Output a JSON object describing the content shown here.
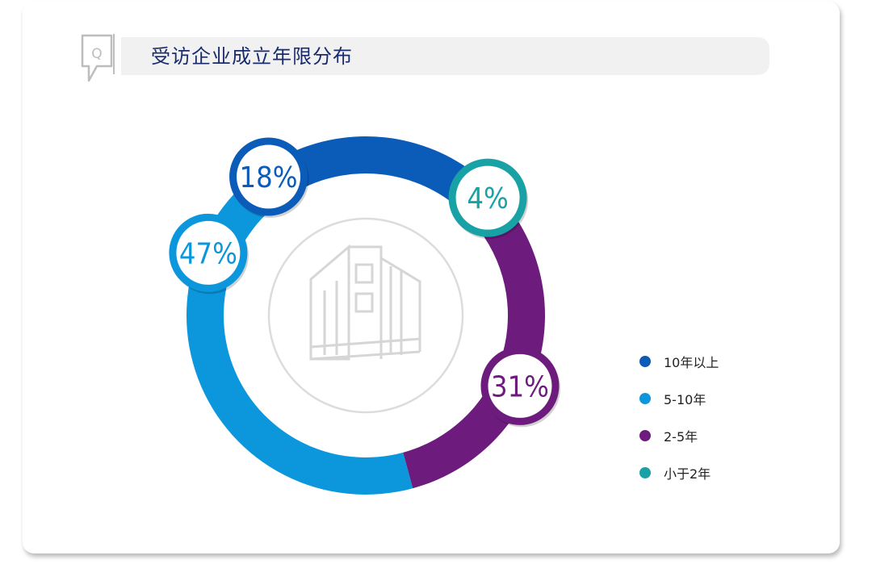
{
  "header": {
    "title": "受访企业成立年限分布",
    "icon": "q-speech-icon"
  },
  "colors": {
    "title": "#1a2b6d",
    "title_bar": "#f1f1f2",
    "inner_circle_border": "#dcdcdc",
    "building_icon": "#d6d6d6"
  },
  "chart_data": {
    "type": "pie",
    "variant": "donut",
    "categories": [
      "10年以上",
      "5-10年",
      "2-5年",
      "小于2年"
    ],
    "values": [
      18,
      47,
      31,
      4
    ],
    "labels": [
      "18%",
      "47%",
      "31%",
      "4%"
    ],
    "colors": [
      "#0a5cb8",
      "#0c97dc",
      "#6d1c7e",
      "#19a2a6"
    ],
    "unit": "%",
    "legend_position": "right",
    "center_icon": "building-icon"
  }
}
